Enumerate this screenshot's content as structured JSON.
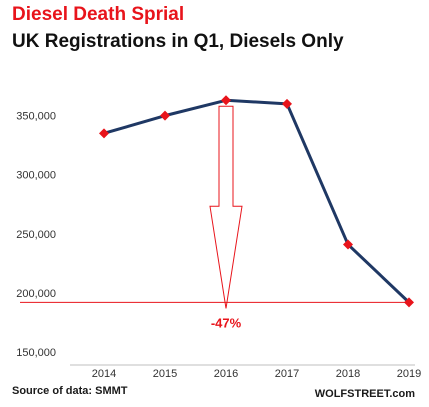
{
  "chart_data": {
    "type": "line",
    "title": "Diesel Death Sprial",
    "subtitle": "UK Registrations  in Q1, Diesels Only",
    "xlabel": "",
    "ylabel": "",
    "categories": [
      "2014",
      "2015",
      "2016",
      "2017",
      "2018",
      "2019"
    ],
    "series": [
      {
        "values": [
          335000,
          350000,
          363000,
          360000,
          241000,
          192000
        ]
      }
    ],
    "ylim": [
      150000,
      370000
    ],
    "yticks": [
      150000,
      200000,
      250000,
      300000,
      350000
    ],
    "ytick_labels": [
      "150,000",
      "200,000",
      "250,000",
      "300,000",
      "350,000"
    ],
    "grid": false,
    "annotation": {
      "text": "-47%",
      "from_category": "2016",
      "to_category": "2019",
      "reference_value": 192000
    },
    "source": "Source of data: SMMT",
    "brand": "WOLFSTREET.com",
    "colors": {
      "title": "#e8141b",
      "line": "#1f3864",
      "marker": "#e8141b",
      "annotation": "#e8141b",
      "axis": "#bfbfbf"
    }
  }
}
